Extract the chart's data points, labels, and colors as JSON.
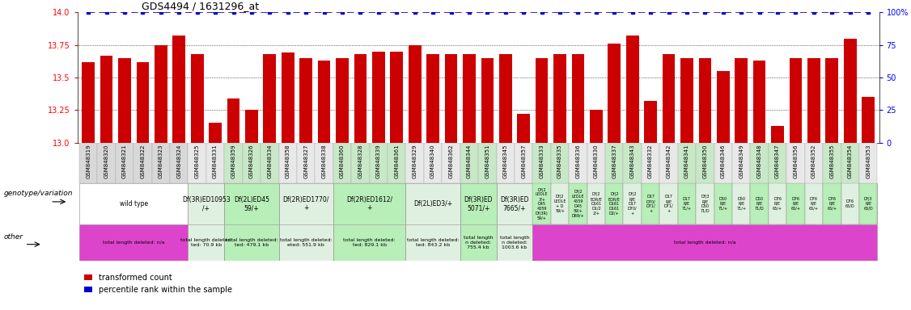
{
  "title": "GDS4494 / 1631296_at",
  "bar_color": "#cc0000",
  "line_color": "#0000cc",
  "ylim_left": [
    13.0,
    14.0
  ],
  "ylim_right": [
    0,
    100
  ],
  "yticks_left": [
    13.0,
    13.25,
    13.5,
    13.75,
    14.0
  ],
  "yticks_right": [
    0,
    25,
    50,
    75,
    100
  ],
  "samples": [
    "GSM848319",
    "GSM848320",
    "GSM848321",
    "GSM848322",
    "GSM848323",
    "GSM848324",
    "GSM848325",
    "GSM848331",
    "GSM848359",
    "GSM848326",
    "GSM848334",
    "GSM848358",
    "GSM848327",
    "GSM848338",
    "GSM848360",
    "GSM848328",
    "GSM848339",
    "GSM848361",
    "GSM848329",
    "GSM848340",
    "GSM848362",
    "GSM848344",
    "GSM848351",
    "GSM848345",
    "GSM848357",
    "GSM848333",
    "GSM848335",
    "GSM848336",
    "GSM848330",
    "GSM848337",
    "GSM848343",
    "GSM848332",
    "GSM848342",
    "GSM848341",
    "GSM848350",
    "GSM848346",
    "GSM848349",
    "GSM848348",
    "GSM848347",
    "GSM848356",
    "GSM848352",
    "GSM848355",
    "GSM848354",
    "GSM848353"
  ],
  "values": [
    13.62,
    13.67,
    13.65,
    13.62,
    13.75,
    13.82,
    13.68,
    13.15,
    13.34,
    13.25,
    13.68,
    13.69,
    13.65,
    13.63,
    13.65,
    13.68,
    13.7,
    13.7,
    13.75,
    13.68,
    13.68,
    13.68,
    13.65,
    13.68,
    13.22,
    13.65,
    13.68,
    13.68,
    13.25,
    13.76,
    13.82,
    13.32,
    13.68,
    13.65,
    13.65,
    13.55,
    13.65,
    13.63,
    13.13,
    13.65,
    13.65,
    13.65,
    13.8,
    13.35
  ],
  "tick_bg_colors": [
    "#d8d8d8",
    "#d8d8d8",
    "#d8d8d8",
    "#d8d8d8",
    "#d8d8d8",
    "#d8d8d8",
    "#e8e8e8",
    "#e8e8e8",
    "#c8e8c8",
    "#c8e8c8",
    "#c8e8c8",
    "#e8e8e8",
    "#e8e8e8",
    "#e8e8e8",
    "#c8e8c8",
    "#c8e8c8",
    "#c8e8c8",
    "#c8e8c8",
    "#e8e8e8",
    "#e8e8e8",
    "#e8e8e8",
    "#c8e8c8",
    "#c8e8c8",
    "#e8e8e8",
    "#e8e8e8",
    "#c8e8c8",
    "#c8e8c8",
    "#e8e8e8",
    "#e8e8e8",
    "#c8e8c8",
    "#c8e8c8",
    "#e8e8e8",
    "#e8e8e8",
    "#c8e8c8",
    "#c8e8c8",
    "#e8e8e8",
    "#e8e8e8",
    "#c8e8c8",
    "#c8e8c8",
    "#e8e8e8",
    "#e8e8e8",
    "#c8e8c8",
    "#c8e8c8",
    "#e8e8e8"
  ],
  "genotype_groups": [
    {
      "label": "wild type",
      "start": 0,
      "end": 6,
      "color": "#ffffff"
    },
    {
      "label": "Df(3R)ED10953\n/+",
      "start": 6,
      "end": 8,
      "color": "#e0f0e0"
    },
    {
      "label": "Df(2L)ED45\n59/+",
      "start": 8,
      "end": 11,
      "color": "#b8eeb8"
    },
    {
      "label": "Df(2R)ED1770/\n+",
      "start": 11,
      "end": 14,
      "color": "#e0f0e0"
    },
    {
      "label": "Df(2R)ED1612/\n+",
      "start": 14,
      "end": 18,
      "color": "#b8eeb8"
    },
    {
      "label": "Df(2L)ED3/+",
      "start": 18,
      "end": 21,
      "color": "#e0f0e0"
    },
    {
      "label": "Df(3R)ED\n5071/+",
      "start": 21,
      "end": 23,
      "color": "#b8eeb8"
    },
    {
      "label": "Df(3R)ED\n7665/+",
      "start": 23,
      "end": 25,
      "color": "#e0f0e0"
    },
    {
      "label": "small",
      "start": 25,
      "end": 44,
      "color": "#b8eeb8"
    }
  ],
  "genotype_small_labels": [
    {
      "idx": 25,
      "lines": [
        "Df(2",
        "LEDLE",
        "3/+",
        "D45",
        "4559",
        "Df(3R)",
        "59/+"
      ]
    },
    {
      "idx": 26,
      "lines": [
        "Df(2",
        "LEDLE",
        "+ D",
        "59/+"
      ]
    },
    {
      "idx": 27,
      "lines": [
        "Df(2",
        "LEDLE",
        "4559",
        "D45",
        "59/+",
        "D69/+"
      ]
    },
    {
      "idx": 28,
      "lines": [
        "Df(2",
        "EDR/E",
        "D161",
        "D1/2",
        "2/+"
      ]
    },
    {
      "idx": 29,
      "lines": [
        "Df(2",
        "EDR/E",
        "D161",
        "D161",
        "D2/+"
      ]
    },
    {
      "idx": 30,
      "lines": [
        "Df(2",
        "R/E",
        "D17",
        "D70/",
        "+"
      ]
    },
    {
      "idx": 31,
      "lines": [
        "D17",
        "D70/",
        "D71/",
        "+"
      ]
    },
    {
      "idx": 32,
      "lines": [
        "D17",
        "R/E",
        "D71/",
        "+"
      ]
    },
    {
      "idx": 33,
      "lines": [
        "D17",
        "R/E",
        "71/+"
      ]
    },
    {
      "idx": 34,
      "lines": [
        "Df(3",
        "R/E",
        "D50",
        "71/D"
      ]
    },
    {
      "idx": 35,
      "lines": [
        "D50",
        "R/E",
        "71/+"
      ]
    },
    {
      "idx": 36,
      "lines": [
        "D50",
        "R/E",
        "71/+"
      ]
    },
    {
      "idx": 37,
      "lines": [
        "D50",
        "R/E",
        "71/D"
      ]
    },
    {
      "idx": 38,
      "lines": [
        "D76",
        "R/E",
        "65/+"
      ]
    },
    {
      "idx": 39,
      "lines": [
        "D76",
        "R/E",
        "65/+"
      ]
    },
    {
      "idx": 40,
      "lines": [
        "D76",
        "R/E",
        "65/+"
      ]
    },
    {
      "idx": 41,
      "lines": [
        "D76",
        "R/E",
        "65/+"
      ]
    },
    {
      "idx": 42,
      "lines": [
        "D76",
        "65/D"
      ]
    },
    {
      "idx": 43,
      "lines": [
        "Df(3",
        "R/E",
        "65/D"
      ]
    }
  ],
  "other_groups": [
    {
      "label": "total length deleted: n/a",
      "start": 0,
      "end": 6,
      "color": "#dd44cc"
    },
    {
      "label": "total length deleted:\nted: 70.9 kb",
      "start": 6,
      "end": 8,
      "color": "#e0f0e0"
    },
    {
      "label": "total length deleted:\nted: 479.1 kb",
      "start": 8,
      "end": 11,
      "color": "#b8eeb8"
    },
    {
      "label": "total length deleted:\neted: 551.9 kb",
      "start": 11,
      "end": 14,
      "color": "#e0f0e0"
    },
    {
      "label": "total length deleted:\nted: 829.1 kb",
      "start": 14,
      "end": 18,
      "color": "#b8eeb8"
    },
    {
      "label": "total length deleted:\nted: 843.2 kb",
      "start": 18,
      "end": 21,
      "color": "#e0f0e0"
    },
    {
      "label": "total length\nn deleted:\n755.4 kb",
      "start": 21,
      "end": 23,
      "color": "#b8eeb8"
    },
    {
      "label": "total length\nn deleted:\n1003.6 kb",
      "start": 23,
      "end": 25,
      "color": "#e0f0e0"
    },
    {
      "label": "total length deleted: n/a",
      "start": 25,
      "end": 44,
      "color": "#dd44cc"
    }
  ],
  "legend_items": [
    {
      "color": "#cc0000",
      "label": "transformed count"
    },
    {
      "color": "#0000cc",
      "label": "percentile rank within the sample"
    }
  ]
}
